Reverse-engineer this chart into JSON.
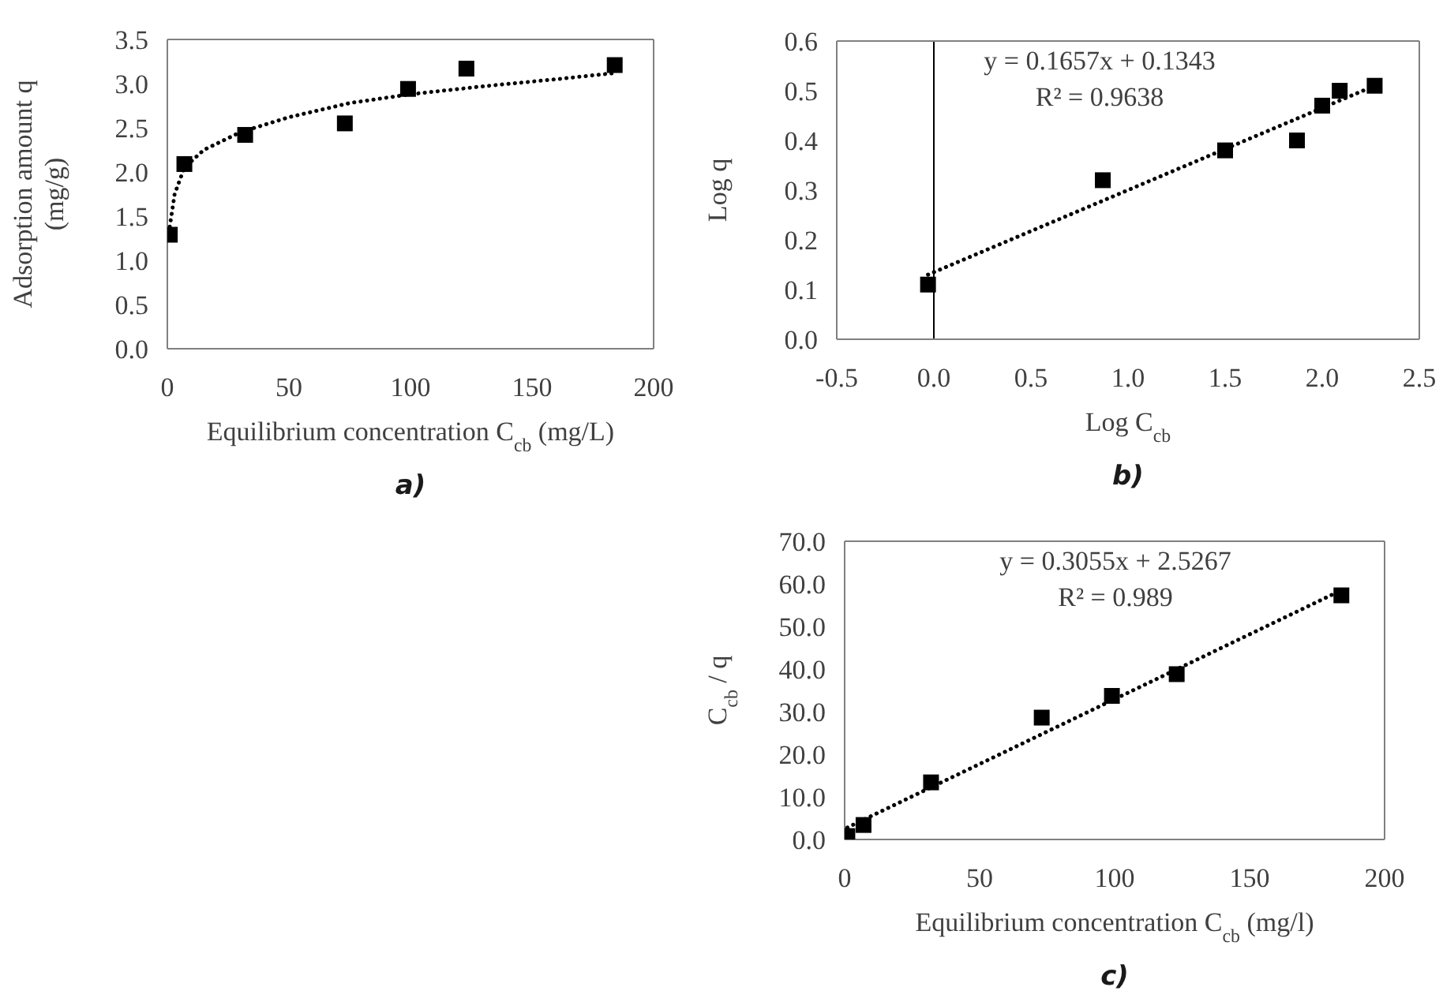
{
  "chart_data": [
    {
      "type": "scatter",
      "title": "a)",
      "xlabel": "Equilibrium concentration C$_{cb}$ (mg/L)",
      "ylabel": "Adsorption amount q\n(mg/g)",
      "xlim": [
        0,
        200
      ],
      "xticks": [
        0,
        50,
        100,
        150,
        200
      ],
      "ylim": [
        0,
        3.5
      ],
      "yticks": [
        {
          "value": 0,
          "label": "0.0"
        },
        {
          "value": 0.5,
          "label": "0.5"
        },
        {
          "value": 1,
          "label": "1.0"
        },
        {
          "value": 1.5,
          "label": "1.5"
        },
        {
          "value": 2,
          "label": "2.0"
        },
        {
          "value": 2.5,
          "label": "2.5"
        },
        {
          "value": 3,
          "label": "3.0"
        },
        {
          "value": 3.5,
          "label": "3.5"
        }
      ],
      "series": [
        {
          "type": "scatter",
          "color": "#000000",
          "marker": "square",
          "x": [
            1,
            7,
            32,
            73,
            99,
            123,
            184
          ],
          "values": [
            1.29,
            2.09,
            2.42,
            2.55,
            2.94,
            3.17,
            3.21
          ]
        },
        {
          "type": "line",
          "color": "#000000",
          "marker": "none",
          "line_style": "dotted",
          "x": [
            1,
            3,
            7,
            15,
            30,
            50,
            75,
            100,
            130,
            160,
            184
          ],
          "values": [
            1.38,
            1.75,
            2.05,
            2.25,
            2.45,
            2.62,
            2.78,
            2.88,
            2.97,
            3.05,
            3.12
          ]
        }
      ]
    },
    {
      "type": "scatter",
      "title": "b)",
      "xlabel": "Log C$_{cb}$",
      "ylabel": "Log q",
      "xlim": [
        -0.5,
        2.5
      ],
      "xticks": [
        {
          "value": -0.5,
          "label": "-0.5"
        },
        {
          "value": 0,
          "label": "0.0"
        },
        {
          "value": 0.5,
          "label": "0.5"
        },
        {
          "value": 1,
          "label": "1.0"
        },
        {
          "value": 1.5,
          "label": "1.5"
        },
        {
          "value": 2,
          "label": "2.0"
        },
        {
          "value": 2.5,
          "label": "2.5"
        }
      ],
      "ylim": [
        0,
        0.6
      ],
      "yticks": [
        {
          "value": 0,
          "label": "0.0"
        },
        0.1,
        0.2,
        0.3,
        0.4,
        0.5,
        0.6
      ],
      "ref_lines": [
        {
          "axis": "x",
          "value": 0,
          "color": "#000000"
        }
      ],
      "annotations": [
        "y = 0.1657x + 0.1343",
        "R² = 0.9638"
      ],
      "series": [
        {
          "type": "scatter",
          "color": "#000000",
          "marker": "square",
          "x": [
            -0.03,
            0.87,
            1.5,
            1.87,
            2.0,
            2.09,
            2.27
          ],
          "values": [
            0.11,
            0.32,
            0.38,
            0.4,
            0.47,
            0.5,
            0.51
          ]
        },
        {
          "type": "line",
          "color": "#000000",
          "marker": "none",
          "line_style": "dotted",
          "x": [
            -0.03,
            2.27
          ],
          "values": [
            0.13,
            0.51
          ]
        }
      ]
    },
    {
      "type": "scatter",
      "title": "c)",
      "xlabel": "Equilibrium concentration C$_{cb}$ (mg/l)",
      "ylabel": "C$_{cb}$ / q",
      "xlim": [
        0,
        200
      ],
      "xticks": [
        0,
        50,
        100,
        150,
        200
      ],
      "ylim": [
        0,
        70
      ],
      "yticks": [
        {
          "value": 0,
          "label": "0.0"
        },
        {
          "value": 10,
          "label": "10.0"
        },
        {
          "value": 20,
          "label": "20.0"
        },
        {
          "value": 30,
          "label": "30.0"
        },
        {
          "value": 40,
          "label": "40.0"
        },
        {
          "value": 50,
          "label": "50.0"
        },
        {
          "value": 60,
          "label": "60.0"
        },
        {
          "value": 70,
          "label": "70.0"
        }
      ],
      "annotations": [
        "y = 0.3055x + 2.5267",
        "R² = 0.989"
      ],
      "series": [
        {
          "type": "scatter",
          "color": "#000000",
          "marker": "square",
          "x": [
            1,
            7,
            32,
            73,
            99,
            123,
            184
          ],
          "values": [
            0.8,
            3.4,
            13.4,
            28.6,
            33.7,
            38.8,
            57.3
          ]
        },
        {
          "type": "line",
          "color": "#000000",
          "marker": "none",
          "line_style": "dotted",
          "x": [
            1,
            184
          ],
          "values": [
            2.8,
            58.5
          ]
        }
      ]
    }
  ]
}
